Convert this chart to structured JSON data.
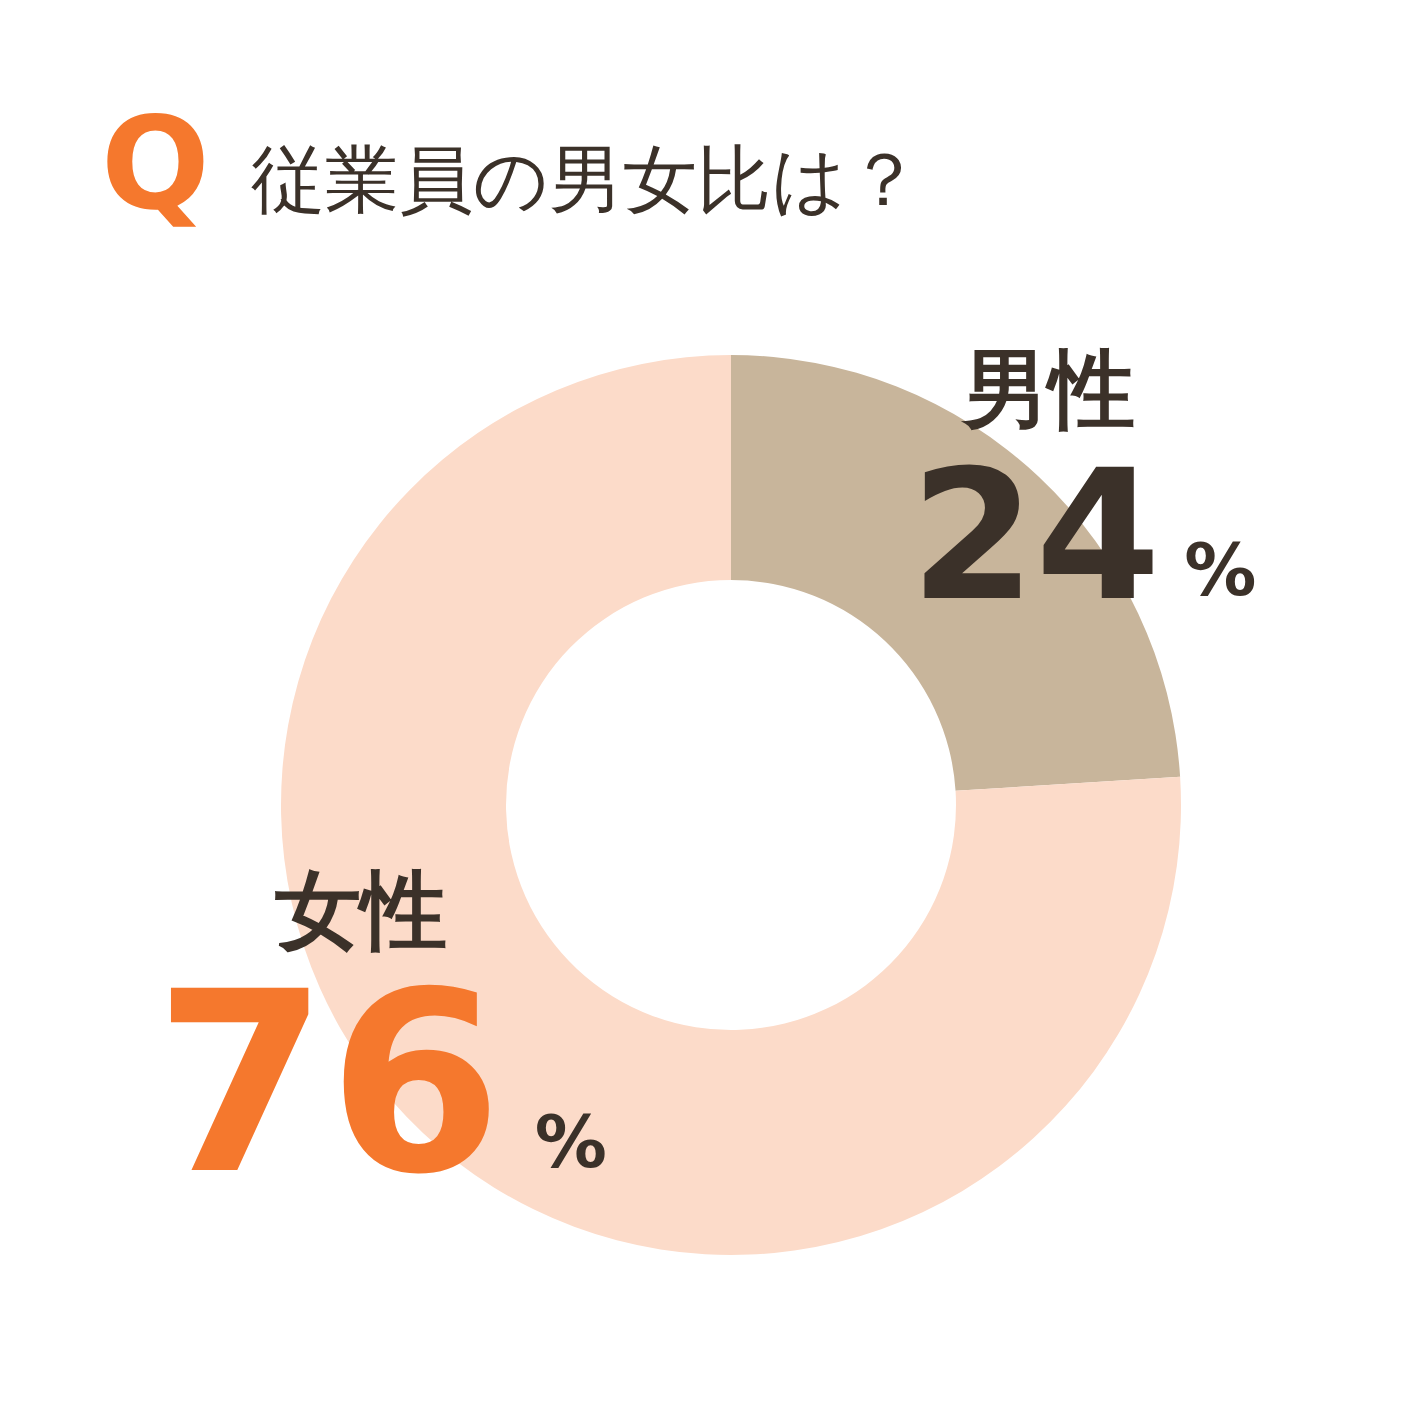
{
  "chart_data": {
    "type": "donut",
    "title": "従業員の男女比は？",
    "annotations": [
      "Q"
    ],
    "categories": [
      "男性",
      "女性"
    ],
    "values": [
      24,
      76
    ],
    "colors": [
      "#c8b59b",
      "#fcdbc9"
    ],
    "value_labels": [
      "24%",
      "76%"
    ]
  }
}
